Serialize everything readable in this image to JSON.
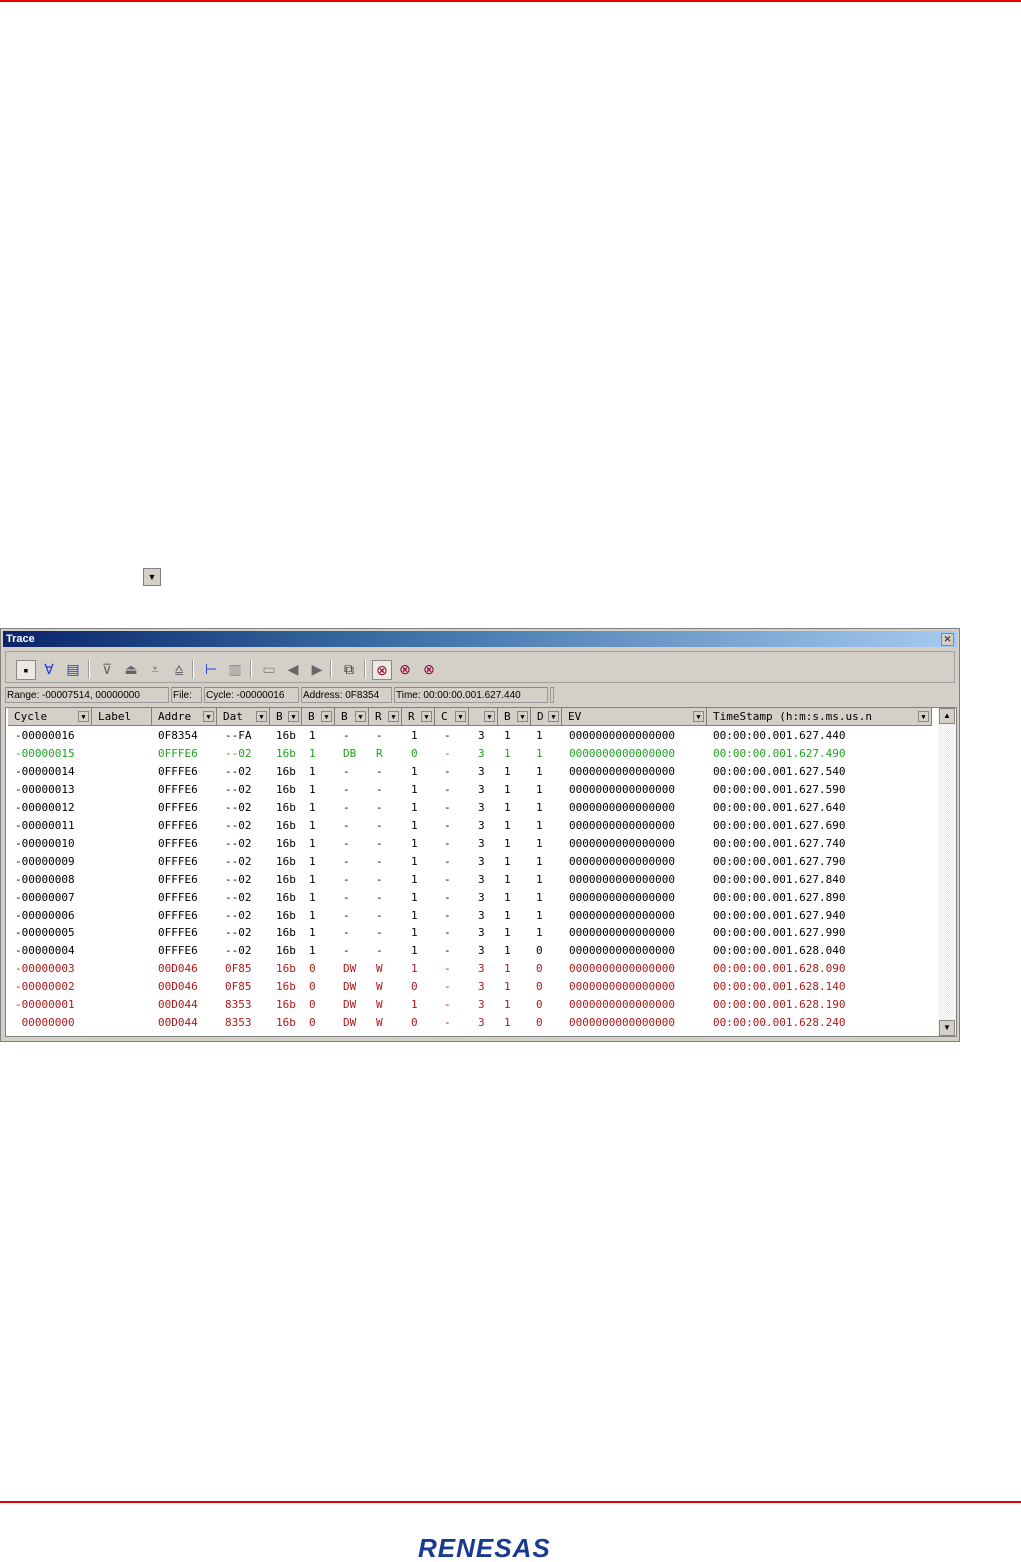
{
  "logo_text": "RENESAS",
  "window": {
    "title": "Trace",
    "close_icon": "close-icon"
  },
  "toolbar": {
    "icons": [
      "trace-acquire-icon",
      "filter-icon",
      "document-icon",
      "step-down-icon",
      "step-up-icon",
      "jump-end-icon",
      "jump-start-icon",
      "tree-icon",
      "split-icon",
      "window-icon",
      "back-icon",
      "forward-icon",
      "properties-icon",
      "search-icon",
      "search-next-icon",
      "search-prev-icon"
    ]
  },
  "infobar": {
    "range": "Range: -00007514,  00000000",
    "file": "File:",
    "cycle": "Cycle: -00000016",
    "address": "Address: 0F8354",
    "time": "Time: 00:00:00.001.627.440"
  },
  "columns": [
    "Cycle",
    "Label",
    "Addre",
    "Dat",
    "B",
    "B",
    "B",
    "R",
    "R",
    "C",
    "",
    "B",
    "D",
    "EV",
    "TimeStamp  (h:m:s.ms.us.n"
  ],
  "colors": {
    "normal": "#000000",
    "highlight": "#20a020",
    "write": "#b01818"
  },
  "rows": [
    {
      "style": "normal",
      "cells": [
        "-00000016",
        "",
        "0F8354",
        "--FA",
        "16b",
        "1",
        "-",
        "-",
        "1",
        "-",
        "3",
        "1",
        "1",
        "0000000000000000",
        "00:00:00.001.627.440"
      ]
    },
    {
      "style": "highlight",
      "cells": [
        "-00000015",
        "",
        "0FFFE6",
        "--02",
        "16b",
        "1",
        "DB",
        "R",
        "0",
        "-",
        "3",
        "1",
        "1",
        "0000000000000000",
        "00:00:00.001.627.490"
      ]
    },
    {
      "style": "normal",
      "cells": [
        "-00000014",
        "",
        "0FFFE6",
        "--02",
        "16b",
        "1",
        "-",
        "-",
        "1",
        "-",
        "3",
        "1",
        "1",
        "0000000000000000",
        "00:00:00.001.627.540"
      ]
    },
    {
      "style": "normal",
      "cells": [
        "-00000013",
        "",
        "0FFFE6",
        "--02",
        "16b",
        "1",
        "-",
        "-",
        "1",
        "-",
        "3",
        "1",
        "1",
        "0000000000000000",
        "00:00:00.001.627.590"
      ]
    },
    {
      "style": "normal",
      "cells": [
        "-00000012",
        "",
        "0FFFE6",
        "--02",
        "16b",
        "1",
        "-",
        "-",
        "1",
        "-",
        "3",
        "1",
        "1",
        "0000000000000000",
        "00:00:00.001.627.640"
      ]
    },
    {
      "style": "normal",
      "cells": [
        "-00000011",
        "",
        "0FFFE6",
        "--02",
        "16b",
        "1",
        "-",
        "-",
        "1",
        "-",
        "3",
        "1",
        "1",
        "0000000000000000",
        "00:00:00.001.627.690"
      ]
    },
    {
      "style": "normal",
      "cells": [
        "-00000010",
        "",
        "0FFFE6",
        "--02",
        "16b",
        "1",
        "-",
        "-",
        "1",
        "-",
        "3",
        "1",
        "1",
        "0000000000000000",
        "00:00:00.001.627.740"
      ]
    },
    {
      "style": "normal",
      "cells": [
        "-00000009",
        "",
        "0FFFE6",
        "--02",
        "16b",
        "1",
        "-",
        "-",
        "1",
        "-",
        "3",
        "1",
        "1",
        "0000000000000000",
        "00:00:00.001.627.790"
      ]
    },
    {
      "style": "normal",
      "cells": [
        "-00000008",
        "",
        "0FFFE6",
        "--02",
        "16b",
        "1",
        "-",
        "-",
        "1",
        "-",
        "3",
        "1",
        "1",
        "0000000000000000",
        "00:00:00.001.627.840"
      ]
    },
    {
      "style": "normal",
      "cells": [
        "-00000007",
        "",
        "0FFFE6",
        "--02",
        "16b",
        "1",
        "-",
        "-",
        "1",
        "-",
        "3",
        "1",
        "1",
        "0000000000000000",
        "00:00:00.001.627.890"
      ]
    },
    {
      "style": "normal",
      "cells": [
        "-00000006",
        "",
        "0FFFE6",
        "--02",
        "16b",
        "1",
        "-",
        "-",
        "1",
        "-",
        "3",
        "1",
        "1",
        "0000000000000000",
        "00:00:00.001.627.940"
      ]
    },
    {
      "style": "normal",
      "cells": [
        "-00000005",
        "",
        "0FFFE6",
        "--02",
        "16b",
        "1",
        "-",
        "-",
        "1",
        "-",
        "3",
        "1",
        "1",
        "0000000000000000",
        "00:00:00.001.627.990"
      ]
    },
    {
      "style": "normal",
      "cells": [
        "-00000004",
        "",
        "0FFFE6",
        "--02",
        "16b",
        "1",
        "-",
        "-",
        "1",
        "-",
        "3",
        "1",
        "0",
        "0000000000000000",
        "00:00:00.001.628.040"
      ]
    },
    {
      "style": "write",
      "cells": [
        "-00000003",
        "",
        "00D046",
        "0F85",
        "16b",
        "0",
        "DW",
        "W",
        "1",
        "-",
        "3",
        "1",
        "0",
        "0000000000000000",
        "00:00:00.001.628.090"
      ]
    },
    {
      "style": "write",
      "cells": [
        "-00000002",
        "",
        "00D046",
        "0F85",
        "16b",
        "0",
        "DW",
        "W",
        "0",
        "-",
        "3",
        "1",
        "0",
        "0000000000000000",
        "00:00:00.001.628.140"
      ]
    },
    {
      "style": "write",
      "cells": [
        "-00000001",
        "",
        "00D044",
        "8353",
        "16b",
        "0",
        "DW",
        "W",
        "1",
        "-",
        "3",
        "1",
        "0",
        "0000000000000000",
        "00:00:00.001.628.190"
      ]
    },
    {
      "style": "write",
      "cells": [
        " 00000000",
        "",
        "00D044",
        "8353",
        "16b",
        "0",
        "DW",
        "W",
        "0",
        "-",
        "3",
        "1",
        "0",
        "0000000000000000",
        "00:00:00.001.628.240"
      ]
    }
  ]
}
